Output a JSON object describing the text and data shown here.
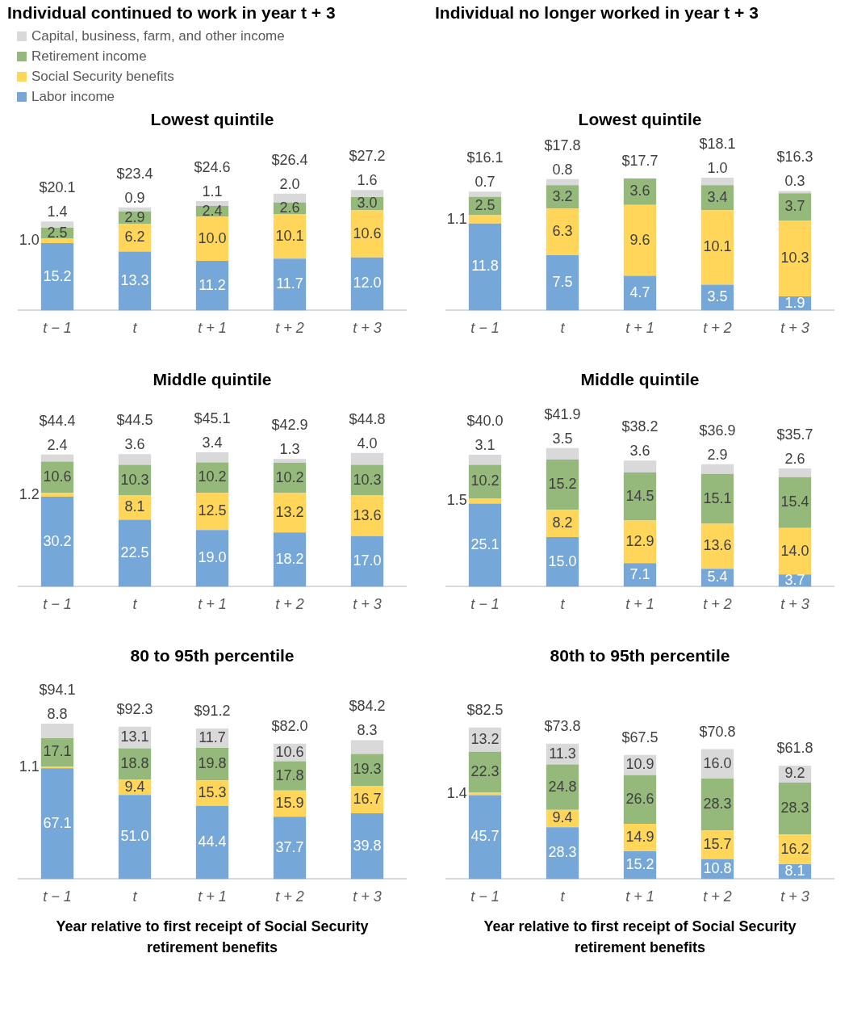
{
  "chart_data": [
    {
      "type": "bar",
      "title": "Individual continued to work in year t + 3",
      "subtitle": "Lowest quintile",
      "categories": [
        "t − 1",
        "t",
        "t + 1",
        "t + 2",
        "t + 3"
      ],
      "stacked": true,
      "legend": "top left",
      "series": [
        {
          "name": "Labor income",
          "color": "#75a7d9",
          "values": [
            15.2,
            13.3,
            11.2,
            11.7,
            12.0
          ],
          "value_labels": [
            "15.2",
            "13.3",
            "11.2",
            "11.7",
            "12.0"
          ]
        },
        {
          "name": "Social Security benefits",
          "color": "#ffd55a",
          "values": [
            1.0,
            6.2,
            10.0,
            10.1,
            10.6
          ],
          "value_labels": [
            "1.0",
            "6.2",
            "10.0",
            "10.1",
            "10.6"
          ]
        },
        {
          "name": "Retirement income",
          "color": "#94b97a",
          "values": [
            2.5,
            2.9,
            2.4,
            2.6,
            3.0
          ],
          "value_labels": [
            "2.5",
            "2.9",
            "2.4",
            "2.6",
            "3.0"
          ]
        },
        {
          "name": "Capital, business, farm, and other income",
          "color": "#d9d9d9",
          "values": [
            1.4,
            0.9,
            1.1,
            2.0,
            1.6
          ],
          "value_labels": [
            "1.4",
            "0.9",
            "1.1",
            "2.0",
            "1.6"
          ]
        }
      ],
      "totals": [
        "$20.1",
        "$23.4",
        "$24.6",
        "$26.4",
        "$27.2"
      ]
    },
    {
      "type": "bar",
      "title": "Individual no longer worked in year t + 3",
      "subtitle": "Lowest quintile",
      "categories": [
        "t − 1",
        "t",
        "t + 1",
        "t + 2",
        "t + 3"
      ],
      "stacked": true,
      "series": [
        {
          "color": "#75a7d9",
          "values": [
            11.8,
            7.5,
            4.7,
            3.5,
            1.9
          ],
          "value_labels": [
            "11.8",
            "7.5",
            "4.7",
            "3.5",
            "1.9"
          ]
        },
        {
          "color": "#ffd55a",
          "values": [
            1.1,
            6.3,
            9.6,
            10.1,
            10.3
          ],
          "value_labels": [
            "1.1",
            "6.3",
            "9.6",
            "10.1",
            "10.3"
          ]
        },
        {
          "color": "#94b97a",
          "values": [
            2.5,
            3.2,
            3.6,
            3.4,
            3.7
          ],
          "value_labels": [
            "2.5",
            "3.2",
            "3.6",
            "3.4",
            "3.7"
          ]
        },
        {
          "color": "#d9d9d9",
          "values": [
            0.7,
            0.8,
            null,
            1.0,
            0.3
          ],
          "value_labels": [
            "0.7",
            "0.8",
            null,
            "1.0",
            "0.3"
          ]
        }
      ],
      "totals": [
        "$16.1",
        "$17.8",
        "$17.7",
        "$18.1",
        "$16.3"
      ]
    },
    {
      "type": "bar",
      "title": "Middle quintile",
      "categories": [
        "t − 1",
        "t",
        "t + 1",
        "t + 2",
        "t + 3"
      ],
      "stacked": true,
      "series": [
        {
          "color": "#75a7d9",
          "values": [
            30.2,
            22.5,
            19.0,
            18.2,
            17.0
          ],
          "value_labels": [
            "30.2",
            "22.5",
            "19.0",
            "18.2",
            "17.0"
          ]
        },
        {
          "color": "#ffd55a",
          "values": [
            1.2,
            8.1,
            12.5,
            13.2,
            13.6
          ],
          "value_labels": [
            "1.2",
            "8.1",
            "12.5",
            "13.2",
            "13.6"
          ]
        },
        {
          "color": "#94b97a",
          "values": [
            10.6,
            10.3,
            10.2,
            10.2,
            10.3
          ],
          "value_labels": [
            "10.6",
            "10.3",
            "10.2",
            "10.2",
            "10.3"
          ]
        },
        {
          "color": "#d9d9d9",
          "values": [
            2.4,
            3.6,
            3.4,
            1.3,
            4.0
          ],
          "value_labels": [
            "2.4",
            "3.6",
            "3.4",
            "1.3",
            "4.0"
          ]
        }
      ],
      "totals": [
        "$44.4",
        "$44.5",
        "$45.1",
        "$42.9",
        "$44.8"
      ]
    },
    {
      "type": "bar",
      "title": "Middle quintile",
      "categories": [
        "t − 1",
        "t",
        "t + 1",
        "t + 2",
        "t + 3"
      ],
      "stacked": true,
      "series": [
        {
          "color": "#75a7d9",
          "values": [
            25.1,
            15.0,
            7.1,
            5.4,
            3.7
          ],
          "value_labels": [
            "25.1",
            "15.0",
            "7.1",
            "5.4",
            "3.7"
          ]
        },
        {
          "color": "#ffd55a",
          "values": [
            1.5,
            8.2,
            12.9,
            13.6,
            14.0
          ],
          "value_labels": [
            "1.5",
            "8.2",
            "12.9",
            "13.6",
            "14.0"
          ]
        },
        {
          "color": "#94b97a",
          "values": [
            10.2,
            15.2,
            14.5,
            15.1,
            15.4
          ],
          "value_labels": [
            "10.2",
            "15.2",
            "14.5",
            "15.1",
            "15.4"
          ]
        },
        {
          "color": "#d9d9d9",
          "values": [
            3.1,
            3.5,
            3.6,
            2.9,
            2.6
          ],
          "value_labels": [
            "3.1",
            "3.5",
            "3.6",
            "2.9",
            "2.6"
          ]
        }
      ],
      "totals": [
        "$40.0",
        "$41.9",
        "$38.2",
        "$36.9",
        "$35.7"
      ]
    },
    {
      "type": "bar",
      "title": "80 to 95th percentile",
      "xlabel": "Year relative to first receipt of Social Security retirement benefits",
      "categories": [
        "t − 1",
        "t",
        "t + 1",
        "t + 2",
        "t + 3"
      ],
      "stacked": true,
      "series": [
        {
          "color": "#75a7d9",
          "values": [
            67.1,
            51.0,
            44.4,
            37.7,
            39.8
          ],
          "value_labels": [
            "67.1",
            "51.0",
            "44.4",
            "37.7",
            "39.8"
          ]
        },
        {
          "color": "#ffd55a",
          "values": [
            1.1,
            9.4,
            15.3,
            15.9,
            16.7
          ],
          "value_labels": [
            "1.1",
            "9.4",
            "15.3",
            "15.9",
            "16.7"
          ]
        },
        {
          "color": "#94b97a",
          "values": [
            17.1,
            18.8,
            19.8,
            17.8,
            19.3
          ],
          "value_labels": [
            "17.1",
            "18.8",
            "19.8",
            "17.8",
            "19.3"
          ]
        },
        {
          "color": "#d9d9d9",
          "values": [
            8.8,
            13.1,
            11.7,
            10.6,
            8.3
          ],
          "value_labels": [
            "8.8",
            "13.1",
            "11.7",
            "10.6",
            "8.3"
          ]
        }
      ],
      "totals": [
        "$94.1",
        "$92.3",
        "$91.2",
        "$82.0",
        "$84.2"
      ]
    },
    {
      "type": "bar",
      "title": "80th to 95th percentile",
      "xlabel": "Year relative to first receipt of Social Security retirement benefits",
      "categories": [
        "t − 1",
        "t",
        "t + 1",
        "t + 2",
        "t + 3"
      ],
      "stacked": true,
      "series": [
        {
          "color": "#75a7d9",
          "values": [
            45.7,
            28.3,
            15.2,
            10.8,
            8.1
          ],
          "value_labels": [
            "45.7",
            "28.3",
            "15.2",
            "10.8",
            "8.1"
          ]
        },
        {
          "color": "#ffd55a",
          "values": [
            1.4,
            9.4,
            14.9,
            15.7,
            16.2
          ],
          "value_labels": [
            "1.4",
            "9.4",
            "14.9",
            "15.7",
            "16.2"
          ]
        },
        {
          "color": "#94b97a",
          "values": [
            22.3,
            24.8,
            26.6,
            28.3,
            28.3
          ],
          "value_labels": [
            "22.3",
            "24.8",
            "26.6",
            "28.3",
            "28.3"
          ]
        },
        {
          "color": "#d9d9d9",
          "values": [
            13.2,
            11.3,
            10.9,
            16.0,
            9.2
          ],
          "value_labels": [
            "13.2",
            "11.3",
            "10.9",
            "16.0",
            "9.2"
          ]
        }
      ],
      "totals": [
        "$82.5",
        "$73.8",
        "$67.5",
        "$70.8",
        "$61.8"
      ]
    }
  ]
}
